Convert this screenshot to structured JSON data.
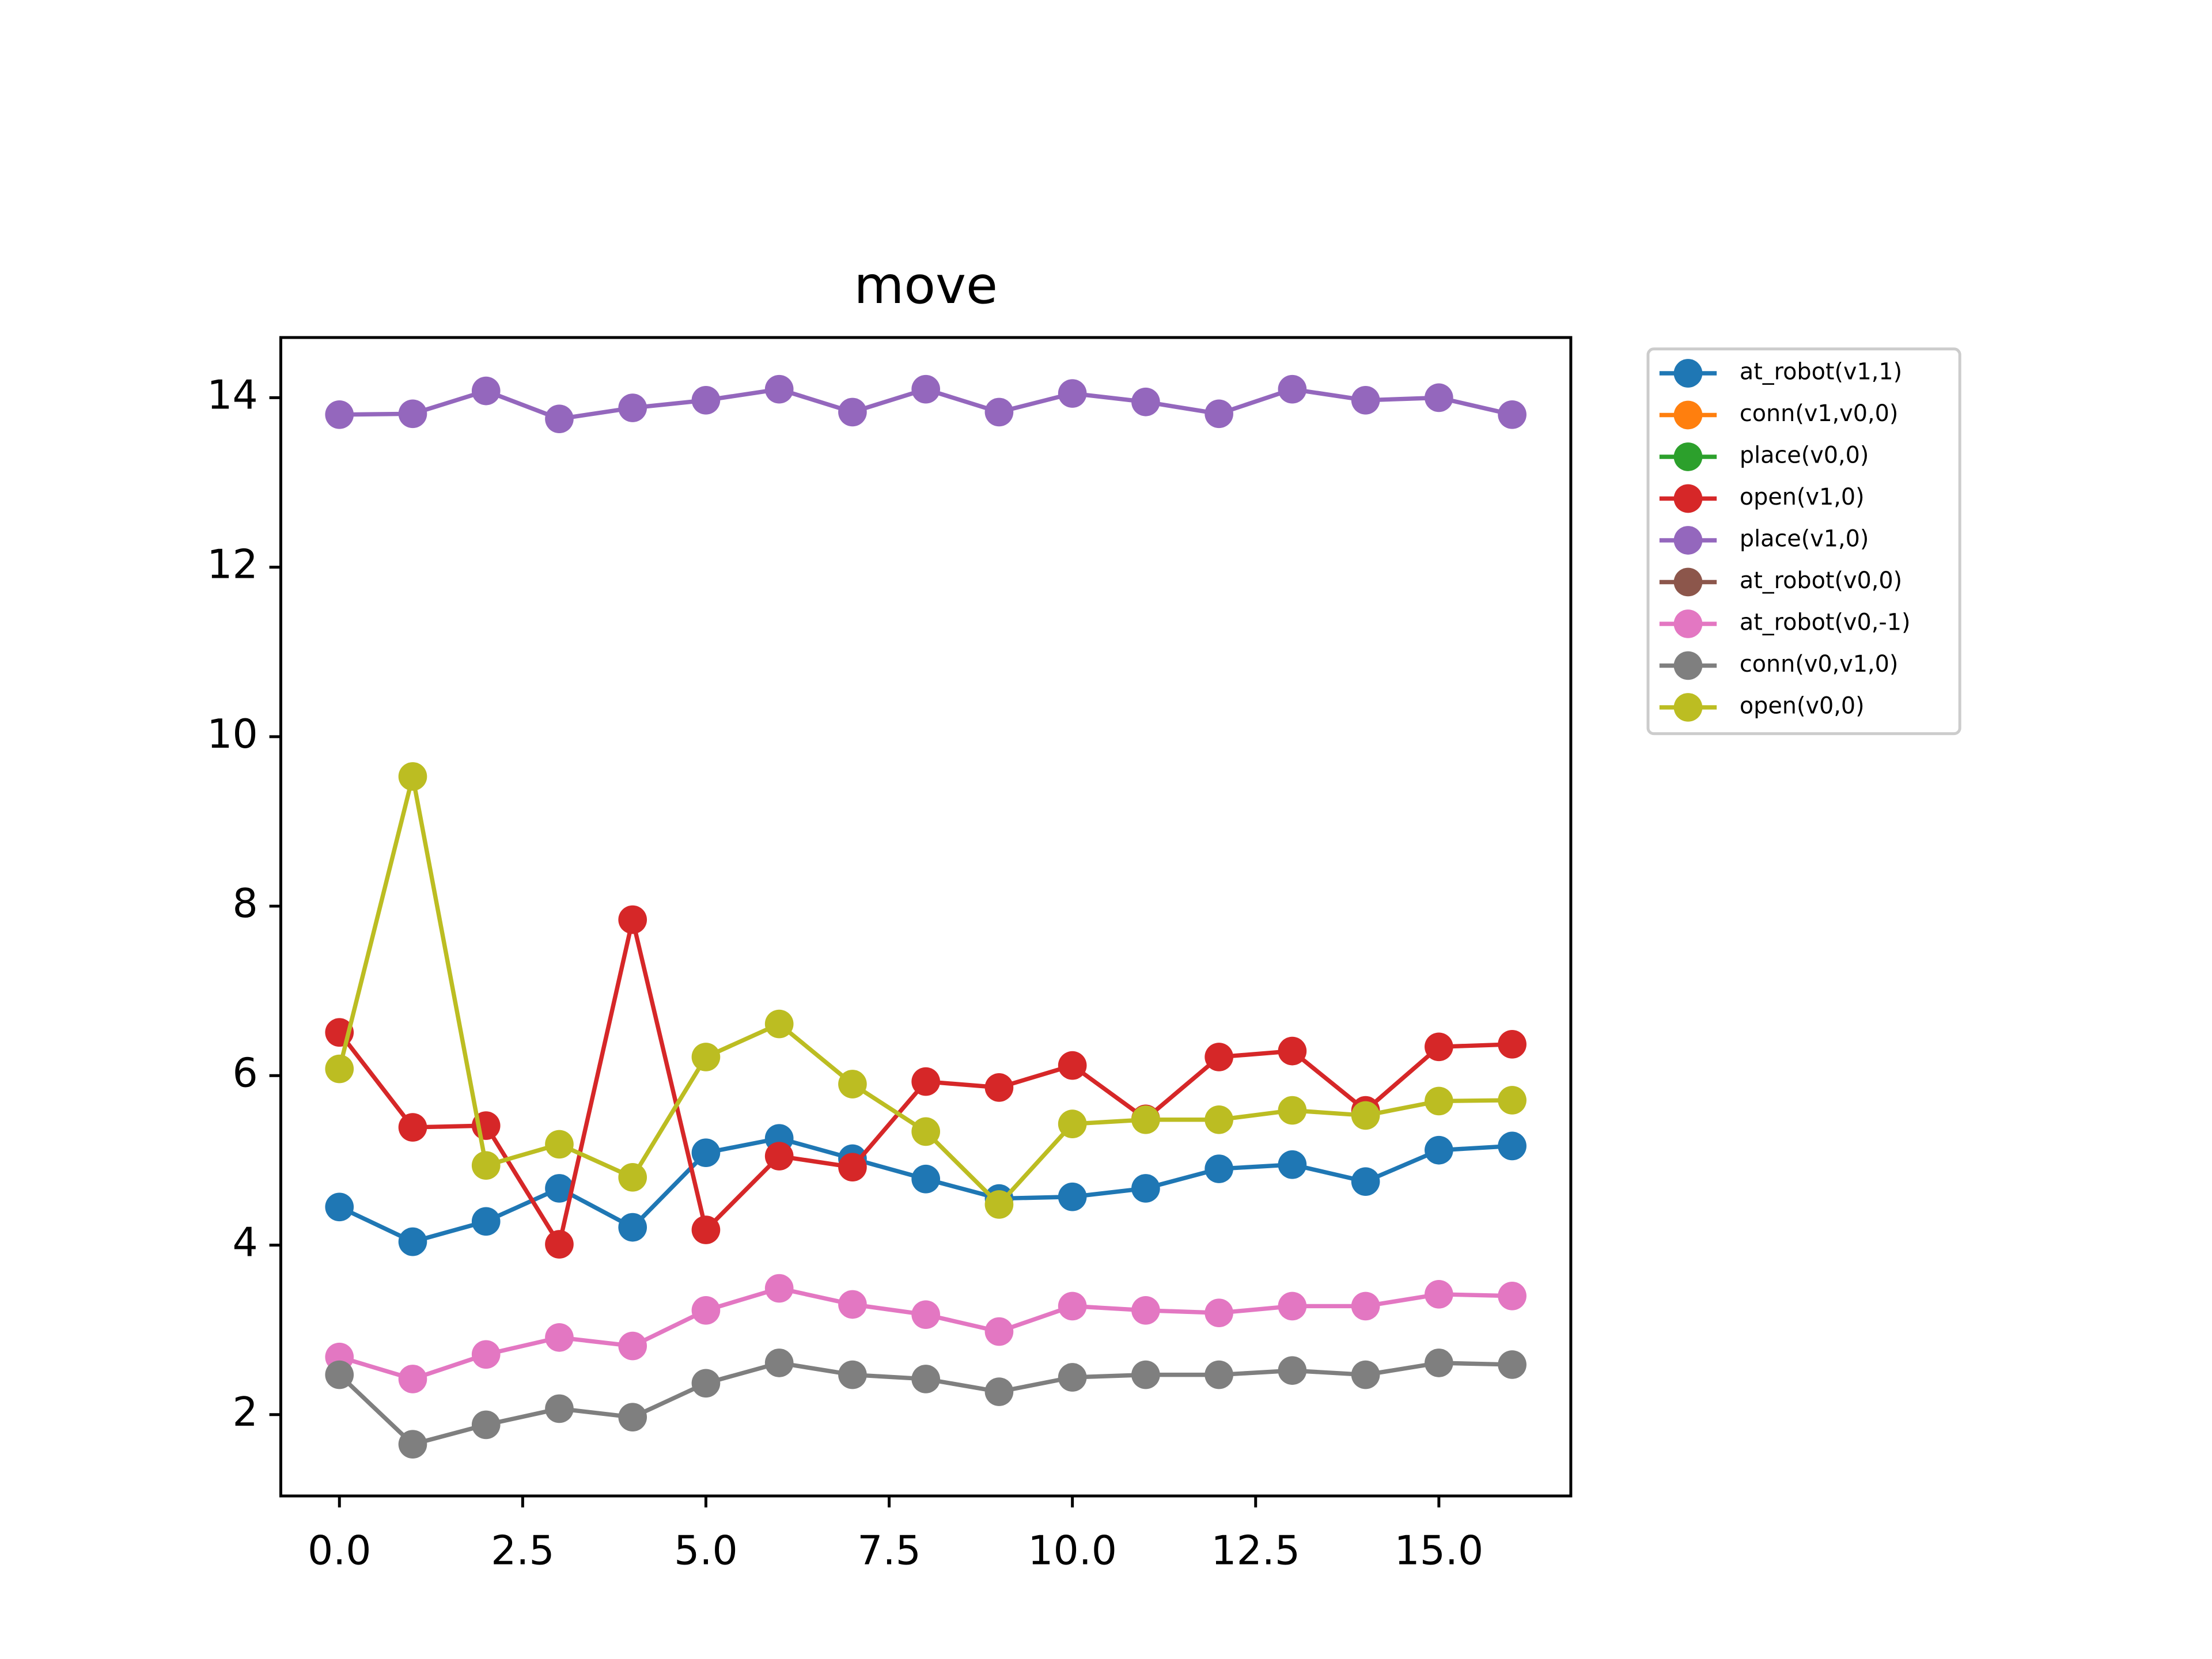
{
  "chart_data": {
    "type": "line",
    "title": "move",
    "x": [
      0,
      1,
      2,
      3,
      4,
      5,
      6,
      7,
      8,
      9,
      10,
      11,
      12,
      13,
      14,
      15,
      16
    ],
    "xlim": [
      -0.8,
      16.8
    ],
    "xticks": [
      {
        "value": 0,
        "label": "0.0"
      },
      {
        "value": 2.5,
        "label": "2.5"
      },
      {
        "value": 5,
        "label": "5.0"
      },
      {
        "value": 7.5,
        "label": "7.5"
      },
      {
        "value": 10,
        "label": "10.0"
      },
      {
        "value": 12.5,
        "label": "12.5"
      },
      {
        "value": 15,
        "label": "15.0"
      }
    ],
    "ylim": [
      1.04,
      14.71
    ],
    "yticks": [
      2,
      4,
      6,
      8,
      10,
      12,
      14
    ],
    "legend": "outside-upper-right",
    "series": [
      {
        "name": "at_robot(v1,1)",
        "color": "#1f77b4",
        "values": [
          4.45,
          4.04,
          4.28,
          4.67,
          4.21,
          5.09,
          5.26,
          5.02,
          4.78,
          4.55,
          4.57,
          4.67,
          4.9,
          4.95,
          4.75,
          5.12,
          5.17
        ]
      },
      {
        "name": "conn(v1,v0,0)",
        "color": "#ff7f0e",
        "values": [
          null,
          null,
          null,
          null,
          null,
          null,
          null,
          null,
          null,
          null,
          null,
          null,
          null,
          null,
          null,
          null,
          null
        ]
      },
      {
        "name": "place(v0,0)",
        "color": "#2ca02c",
        "values": [
          null,
          null,
          null,
          null,
          null,
          null,
          null,
          null,
          null,
          null,
          null,
          null,
          null,
          null,
          null,
          null,
          null
        ]
      },
      {
        "name": "open(v1,0)",
        "color": "#d62728",
        "values": [
          6.51,
          5.39,
          5.41,
          4.01,
          7.84,
          4.18,
          5.05,
          4.92,
          5.93,
          5.86,
          6.12,
          5.49,
          6.22,
          6.29,
          5.59,
          6.34,
          6.37
        ]
      },
      {
        "name": "place(v1,0)",
        "color": "#9467bd",
        "values": [
          13.8,
          13.81,
          14.08,
          13.75,
          13.88,
          13.97,
          14.1,
          13.83,
          14.1,
          13.83,
          14.05,
          13.95,
          13.81,
          14.1,
          13.97,
          14.0,
          13.8
        ]
      },
      {
        "name": "at_robot(v0,0)",
        "color": "#8c564b",
        "values": [
          null,
          null,
          null,
          null,
          null,
          null,
          null,
          null,
          null,
          null,
          null,
          null,
          null,
          null,
          null,
          null,
          null
        ]
      },
      {
        "name": "at_robot(v0,-1)",
        "color": "#e377c2",
        "values": [
          2.68,
          2.42,
          2.71,
          2.91,
          2.81,
          3.23,
          3.49,
          3.3,
          3.18,
          2.98,
          3.28,
          3.23,
          3.2,
          3.28,
          3.28,
          3.42,
          3.4
        ]
      },
      {
        "name": "conn(v0,v1,0)",
        "color": "#7f7f7f",
        "values": [
          2.47,
          1.65,
          1.88,
          2.07,
          1.97,
          2.37,
          2.61,
          2.47,
          2.42,
          2.27,
          2.44,
          2.47,
          2.47,
          2.52,
          2.47,
          2.61,
          2.59
        ]
      },
      {
        "name": "open(v0,0)",
        "color": "#bcbd22",
        "values": [
          6.08,
          9.53,
          4.94,
          5.19,
          4.8,
          6.22,
          6.61,
          5.9,
          5.34,
          4.48,
          5.43,
          5.48,
          5.48,
          5.59,
          5.53,
          5.7,
          5.71
        ]
      }
    ]
  }
}
